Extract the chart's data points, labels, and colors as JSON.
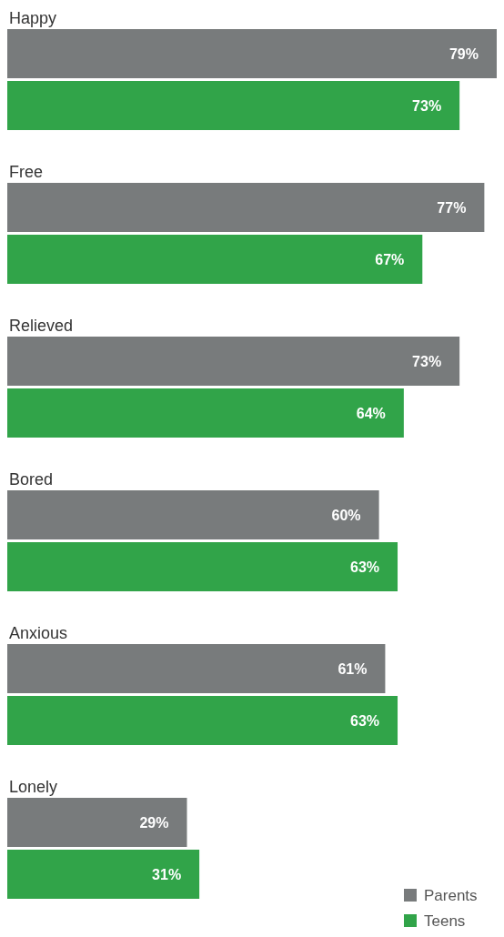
{
  "chart_data": {
    "type": "bar",
    "orientation": "horizontal",
    "categories": [
      "Happy",
      "Free",
      "Relieved",
      "Bored",
      "Anxious",
      "Lonely"
    ],
    "series": [
      {
        "name": "Parents",
        "color": "#787b7c",
        "values": [
          79,
          77,
          73,
          60,
          61,
          29
        ],
        "value_labels": [
          "79%",
          "77%",
          "73%",
          "60%",
          "61%",
          "29%"
        ]
      },
      {
        "name": "Teens",
        "color": "#31a449",
        "values": [
          73,
          67,
          64,
          63,
          63,
          31
        ],
        "value_labels": [
          "73%",
          "67%",
          "64%",
          "63%",
          "63%",
          "31%"
        ]
      }
    ],
    "legend": "bottom right"
  }
}
